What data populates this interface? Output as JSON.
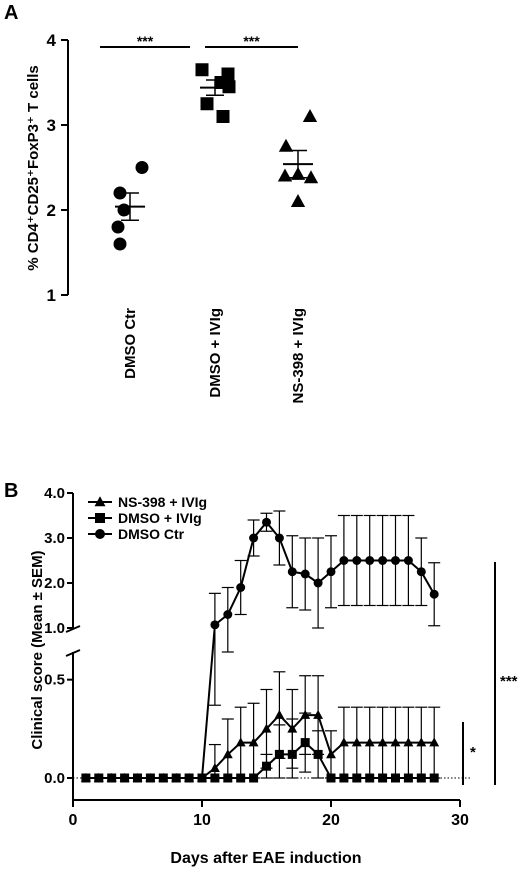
{
  "chart_data": [
    {
      "type": "scatter",
      "panel_label": "A",
      "ylabel": "% CD4⁺CD25⁺FoxP3⁺ T cells",
      "ylim": [
        1,
        4
      ],
      "yticks": [
        1,
        2,
        3,
        4
      ],
      "categories": [
        "DMSO Ctr",
        "DMSO + IVIg",
        "NS-398 + IVIg"
      ],
      "groups": [
        {
          "name": "DMSO Ctr",
          "marker": "circle",
          "points": [
            2.5,
            2.2,
            2.0,
            1.8,
            1.6
          ],
          "mean": 2.04,
          "sem": 0.16
        },
        {
          "name": "DMSO + IVIg",
          "marker": "square",
          "points": [
            3.65,
            3.6,
            3.5,
            3.45,
            3.25,
            3.1
          ],
          "mean": 3.44,
          "sem": 0.09
        },
        {
          "name": "NS-398 + IVIg",
          "marker": "triangle",
          "points": [
            3.1,
            2.75,
            2.42,
            2.4,
            2.38,
            2.1
          ],
          "mean": 2.54,
          "sem": 0.16
        }
      ],
      "significance": [
        {
          "from": "DMSO Ctr",
          "to": "DMSO + IVIg",
          "label": "***"
        },
        {
          "from": "DMSO + IVIg",
          "to": "NS-398 + IVIg",
          "label": "***"
        }
      ],
      "grid": false,
      "legend": "none"
    },
    {
      "type": "line",
      "panel_label": "B",
      "xlabel": "Days after EAE induction",
      "ylabel": "Clinical score (Mean ± SEM)",
      "xlim": [
        0,
        30
      ],
      "xticks": [
        0,
        10,
        20,
        30
      ],
      "y_axis_break": true,
      "ylim_lower": [
        0,
        0.6
      ],
      "ylim_upper": [
        1.0,
        4.0
      ],
      "yticks_lower": [
        "0.0",
        "0.5"
      ],
      "yticks_upper": [
        "1.0",
        "2.0",
        "3.0",
        "4.0"
      ],
      "legend": "top-left",
      "grid": false,
      "series": [
        {
          "name": "NS-398 + IVIg",
          "marker": "triangle",
          "x": [
            1,
            2,
            3,
            4,
            5,
            6,
            7,
            8,
            9,
            10,
            11,
            12,
            13,
            14,
            15,
            16,
            17,
            18,
            19,
            20,
            21,
            22,
            23,
            24,
            25,
            26,
            27,
            28
          ],
          "values": [
            0,
            0,
            0,
            0,
            0,
            0,
            0,
            0,
            0,
            0,
            0.05,
            0.12,
            0.18,
            0.18,
            0.25,
            0.32,
            0.25,
            0.32,
            0.32,
            0.12,
            0.18,
            0.18,
            0.18,
            0.18,
            0.18,
            0.18,
            0.18,
            0.18
          ],
          "sem": [
            0,
            0,
            0,
            0,
            0,
            0,
            0,
            0,
            0,
            0,
            0.12,
            0.18,
            0.18,
            0.2,
            0.2,
            0.22,
            0.2,
            0.2,
            0.2,
            0.12,
            0.18,
            0.18,
            0.18,
            0.18,
            0.18,
            0.18,
            0.18,
            0.18
          ]
        },
        {
          "name": "DMSO + IVIg",
          "marker": "square",
          "x": [
            1,
            2,
            3,
            4,
            5,
            6,
            7,
            8,
            9,
            10,
            11,
            12,
            13,
            14,
            15,
            16,
            17,
            18,
            19,
            20,
            21,
            22,
            23,
            24,
            25,
            26,
            27,
            28
          ],
          "values": [
            0,
            0,
            0,
            0,
            0,
            0,
            0,
            0,
            0,
            0,
            0,
            0,
            0,
            0,
            0.06,
            0.12,
            0.12,
            0.18,
            0.12,
            0,
            0,
            0,
            0,
            0,
            0,
            0,
            0,
            0
          ],
          "sem": [
            0,
            0,
            0,
            0,
            0,
            0,
            0,
            0,
            0,
            0,
            0,
            0,
            0,
            0,
            0.06,
            0.15,
            0.18,
            0.15,
            0.12,
            0,
            0,
            0,
            0,
            0,
            0,
            0,
            0,
            0
          ]
        },
        {
          "name": "DMSO Ctr",
          "marker": "circle",
          "x": [
            1,
            2,
            3,
            4,
            5,
            6,
            7,
            8,
            9,
            10,
            11,
            12,
            13,
            14,
            15,
            16,
            17,
            18,
            19,
            20,
            21,
            22,
            23,
            24,
            25,
            26,
            27,
            28
          ],
          "values": [
            0,
            0,
            0,
            0,
            0,
            0,
            0,
            0,
            0,
            0,
            1.07,
            1.3,
            1.9,
            3.0,
            3.35,
            3.0,
            2.25,
            2.2,
            2.0,
            2.25,
            2.5,
            2.5,
            2.5,
            2.5,
            2.5,
            2.5,
            2.25,
            1.75
          ],
          "sem": [
            0,
            0,
            0,
            0,
            0,
            0,
            0,
            0,
            0,
            0,
            0.7,
            0.6,
            0.6,
            0.4,
            0.2,
            0.6,
            0.8,
            0.8,
            1.0,
            0.8,
            1.0,
            1.0,
            1.0,
            1.0,
            1.0,
            1.0,
            0.75,
            0.7
          ]
        }
      ],
      "significance": [
        {
          "label": "*",
          "between": [
            "NS-398 + IVIg",
            "DMSO + IVIg"
          ]
        },
        {
          "label": "***",
          "between": [
            "NS-398 + IVIg",
            "DMSO Ctr"
          ]
        }
      ]
    }
  ]
}
